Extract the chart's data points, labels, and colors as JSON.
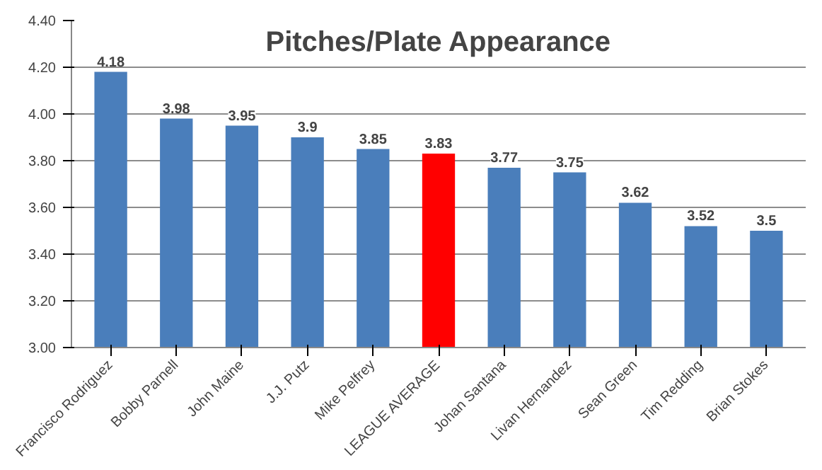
{
  "chart_data": {
    "type": "bar",
    "title": "Pitches/Plate Appearance",
    "categories": [
      "Francisco Rodriguez",
      "Bobby Parnell",
      "John Maine",
      "J.J. Putz",
      "Mike Pelfrey",
      "LEAGUE AVERAGE",
      "Johan Santana",
      "Livan Hernandez",
      "Sean Green",
      "Tim Redding",
      "Brian Stokes"
    ],
    "values": [
      4.18,
      3.98,
      3.95,
      3.9,
      3.85,
      3.83,
      3.77,
      3.75,
      3.62,
      3.52,
      3.5
    ],
    "colors": [
      "#4a7ebb",
      "#4a7ebb",
      "#4a7ebb",
      "#4a7ebb",
      "#4a7ebb",
      "#ff0000",
      "#4a7ebb",
      "#4a7ebb",
      "#4a7ebb",
      "#4a7ebb",
      "#4a7ebb"
    ],
    "ylim": [
      3.0,
      4.4
    ],
    "yticks": [
      {
        "value": 3.0,
        "label": "3.00"
      },
      {
        "value": 3.2,
        "label": "3.20"
      },
      {
        "value": 3.4,
        "label": "3.40"
      },
      {
        "value": 3.6,
        "label": "3.60"
      },
      {
        "value": 3.8,
        "label": "3.80"
      },
      {
        "value": 4.0,
        "label": "4.00"
      },
      {
        "value": 4.2,
        "label": "4.20"
      },
      {
        "value": 4.4,
        "label": "4.40"
      }
    ],
    "grid": "y",
    "data_labels": true
  }
}
